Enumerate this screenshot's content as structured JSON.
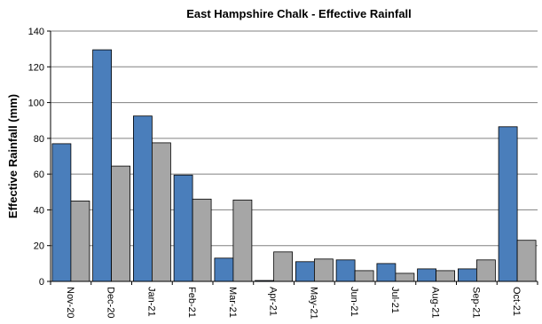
{
  "chart_data": {
    "type": "bar",
    "title": "East Hampshire Chalk - Effective Rainfall",
    "xlabel": "",
    "ylabel": "Effective Rainfall (mm)",
    "ylim": [
      0,
      140
    ],
    "yticks": [
      0,
      20,
      40,
      60,
      80,
      100,
      120,
      140
    ],
    "grid": true,
    "legend": "none",
    "categories": [
      "Nov-20",
      "Dec-20",
      "Jan-21",
      "Feb-21",
      "Mar-21",
      "Apr-21",
      "May-21",
      "Jun-21",
      "Jul-21",
      "Aug-21",
      "Sep-21",
      "Oct-21"
    ],
    "series": [
      {
        "color": "#4a7ebb",
        "values": [
          77,
          129.5,
          92.5,
          59.5,
          13,
          0.5,
          11,
          12,
          10,
          7,
          7,
          86.5
        ]
      },
      {
        "color": "#a6a6a6",
        "values": [
          45,
          64.5,
          77.5,
          46,
          45.5,
          16.5,
          12.5,
          6,
          4.5,
          6,
          12,
          23
        ]
      }
    ]
  }
}
